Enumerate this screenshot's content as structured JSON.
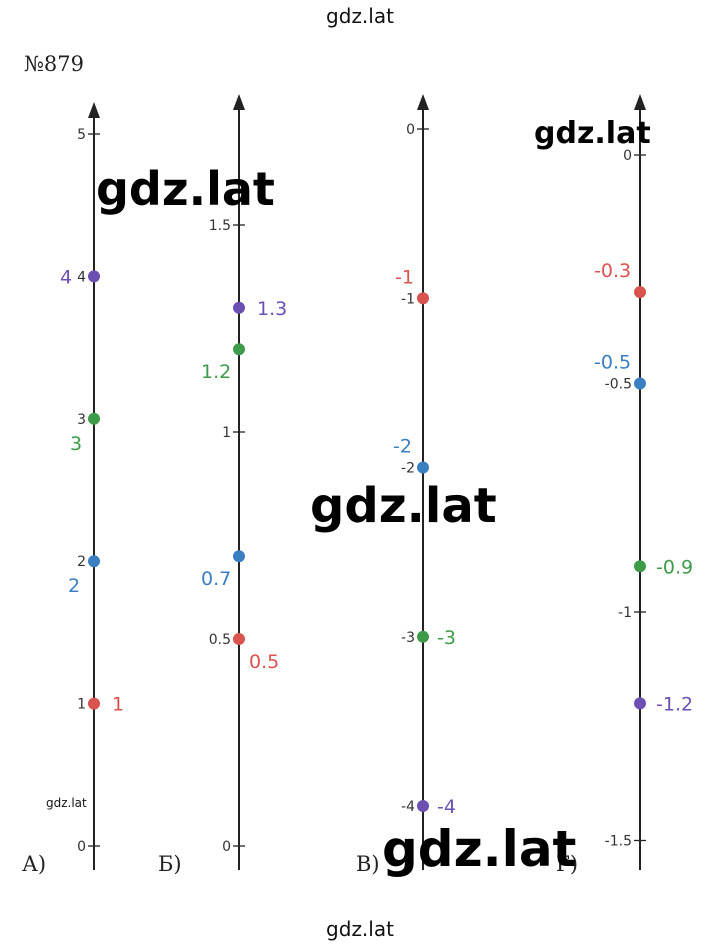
{
  "site_top": "gdz.lat",
  "site_bottom": "gdz.lat",
  "problem_number": "№879",
  "watermarks": {
    "w1": "gdz.lat",
    "w2": "gdz.lat",
    "w3": "gdz.lat",
    "w4": "gdz.lat",
    "w5": "gdz.lat"
  },
  "parts": [
    {
      "label": "А)",
      "ticks": [
        {
          "value": 0,
          "text": "0"
        },
        {
          "value": 1,
          "text": "1"
        },
        {
          "value": 2,
          "text": "2"
        },
        {
          "value": 3,
          "text": "3"
        },
        {
          "value": 4,
          "text": "4"
        },
        {
          "value": 5,
          "text": "5"
        }
      ],
      "points": [
        {
          "value": 1,
          "text": "1",
          "color": "#d9534f"
        },
        {
          "value": 2,
          "text": "2",
          "color": "#3a7fc1"
        },
        {
          "value": 3,
          "text": "3",
          "color": "#3e9b4a"
        },
        {
          "value": 4,
          "text": "4",
          "color": "#6b4fb3"
        }
      ]
    },
    {
      "label": "Б)",
      "ticks": [
        {
          "value": 0,
          "text": "0"
        },
        {
          "value": 0.5,
          "text": "0.5"
        },
        {
          "value": 1,
          "text": "1"
        },
        {
          "value": 1.5,
          "text": "1.5"
        }
      ],
      "points": [
        {
          "value": 0.5,
          "text": "0.5",
          "color": "#d9534f"
        },
        {
          "value": 0.7,
          "text": "0.7",
          "color": "#3a7fc1"
        },
        {
          "value": 1.2,
          "text": "1.2",
          "color": "#3e9b4a"
        },
        {
          "value": 1.3,
          "text": "1.3",
          "color": "#6b4fb3"
        }
      ]
    },
    {
      "label": "В)",
      "ticks": [
        {
          "value": 0,
          "text": "0"
        },
        {
          "value": -1,
          "text": "-1"
        },
        {
          "value": -2,
          "text": "-2"
        },
        {
          "value": -3,
          "text": "-3"
        },
        {
          "value": -4,
          "text": "-4"
        }
      ],
      "points": [
        {
          "value": -1,
          "text": "-1",
          "color": "#d9534f"
        },
        {
          "value": -2,
          "text": "-2",
          "color": "#3a7fc1"
        },
        {
          "value": -3,
          "text": "-3",
          "color": "#3e9b4a"
        },
        {
          "value": -4,
          "text": "-4",
          "color": "#6b4fb3"
        }
      ]
    },
    {
      "label": "Г)",
      "ticks": [
        {
          "value": 0,
          "text": "0"
        },
        {
          "value": -0.5,
          "text": "-0.5"
        },
        {
          "value": -1,
          "text": "-1"
        },
        {
          "value": -1.5,
          "text": "-1.5"
        }
      ],
      "points": [
        {
          "value": -0.3,
          "text": "-0.3",
          "color": "#d9534f"
        },
        {
          "value": -0.5,
          "text": "-0.5",
          "color": "#3a7fc1"
        },
        {
          "value": -0.9,
          "text": "-0.9",
          "color": "#3e9b4a"
        },
        {
          "value": -1.2,
          "text": "-1.2",
          "color": "#6b4fb3"
        }
      ]
    }
  ]
}
